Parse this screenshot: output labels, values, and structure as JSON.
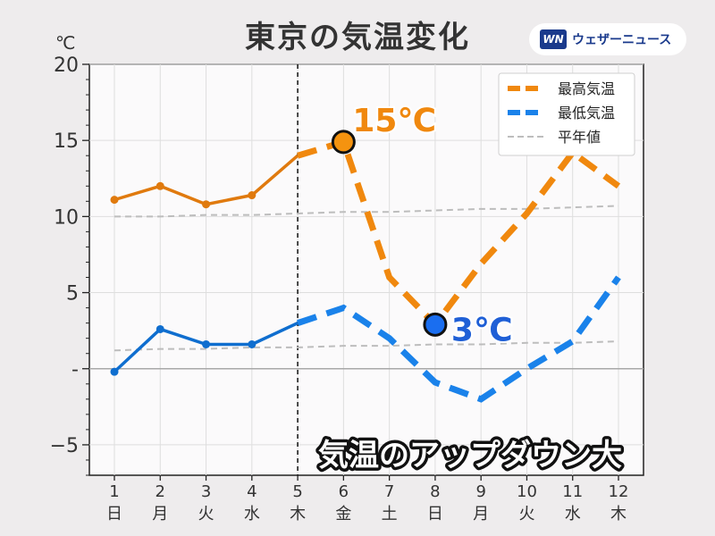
{
  "header": {
    "title": "東京の気温変化",
    "unit": "℃",
    "logo_mark": "WN",
    "logo_text": "ウェザーニュース"
  },
  "chart_data": {
    "type": "line",
    "title": "東京の気温変化",
    "ylabel": "℃",
    "xlabel": "",
    "ylim": [
      -7,
      20
    ],
    "yticks": [
      20,
      15,
      10,
      5,
      0,
      -5
    ],
    "ytick_labels": [
      "20",
      "15",
      "10",
      "5",
      "-",
      "−5"
    ],
    "forecast_start_x": 5,
    "categories": [
      {
        "day": "1",
        "weekday": "日",
        "color": "#e0302c"
      },
      {
        "day": "2",
        "weekday": "月",
        "color": "#333333"
      },
      {
        "day": "3",
        "weekday": "火",
        "color": "#333333"
      },
      {
        "day": "4",
        "weekday": "水",
        "color": "#333333"
      },
      {
        "day": "5",
        "weekday": "木",
        "color": "#333333"
      },
      {
        "day": "6",
        "weekday": "金",
        "color": "#333333"
      },
      {
        "day": "7",
        "weekday": "土",
        "color": "#2a7fd8"
      },
      {
        "day": "8",
        "weekday": "日",
        "color": "#e0302c"
      },
      {
        "day": "9",
        "weekday": "月",
        "color": "#333333"
      },
      {
        "day": "10",
        "weekday": "火",
        "color": "#333333"
      },
      {
        "day": "11",
        "weekday": "水",
        "color": "#e0302c"
      },
      {
        "day": "12",
        "weekday": "木",
        "color": "#333333"
      }
    ],
    "series": [
      {
        "name": "最高気温",
        "color": "#f0880e",
        "observed_color": "#e07a0e",
        "values": [
          11.1,
          12.0,
          10.8,
          11.4,
          14.0,
          14.9,
          6.0,
          2.9,
          6.9,
          10.2,
          14.2,
          12.0
        ]
      },
      {
        "name": "最低気温",
        "color": "#1a82ea",
        "observed_color": "#0f6ecf",
        "values": [
          -0.2,
          2.6,
          1.6,
          1.6,
          3.0,
          4.0,
          2.0,
          -0.9,
          -2.0,
          0.0,
          1.8,
          6.0
        ]
      },
      {
        "name": "平年値",
        "color": "#bdbdbd",
        "values_high": [
          10.0,
          10.0,
          10.1,
          10.1,
          10.2,
          10.3,
          10.3,
          10.4,
          10.5,
          10.5,
          10.6,
          10.7
        ],
        "values_low": [
          1.2,
          1.3,
          1.3,
          1.4,
          1.4,
          1.5,
          1.5,
          1.6,
          1.6,
          1.7,
          1.7,
          1.8
        ]
      }
    ],
    "annotations": [
      {
        "text": "15℃",
        "x": 6,
        "y": 14.9,
        "color": "#f0880e",
        "marker_color": "#f5930f"
      },
      {
        "text": "3℃",
        "x": 8,
        "y": 2.9,
        "color": "#1f5fd6",
        "marker_color": "#1a6ef0"
      }
    ],
    "banner": "気温のアップダウン大",
    "legend_position": "top-right",
    "grid": true
  }
}
